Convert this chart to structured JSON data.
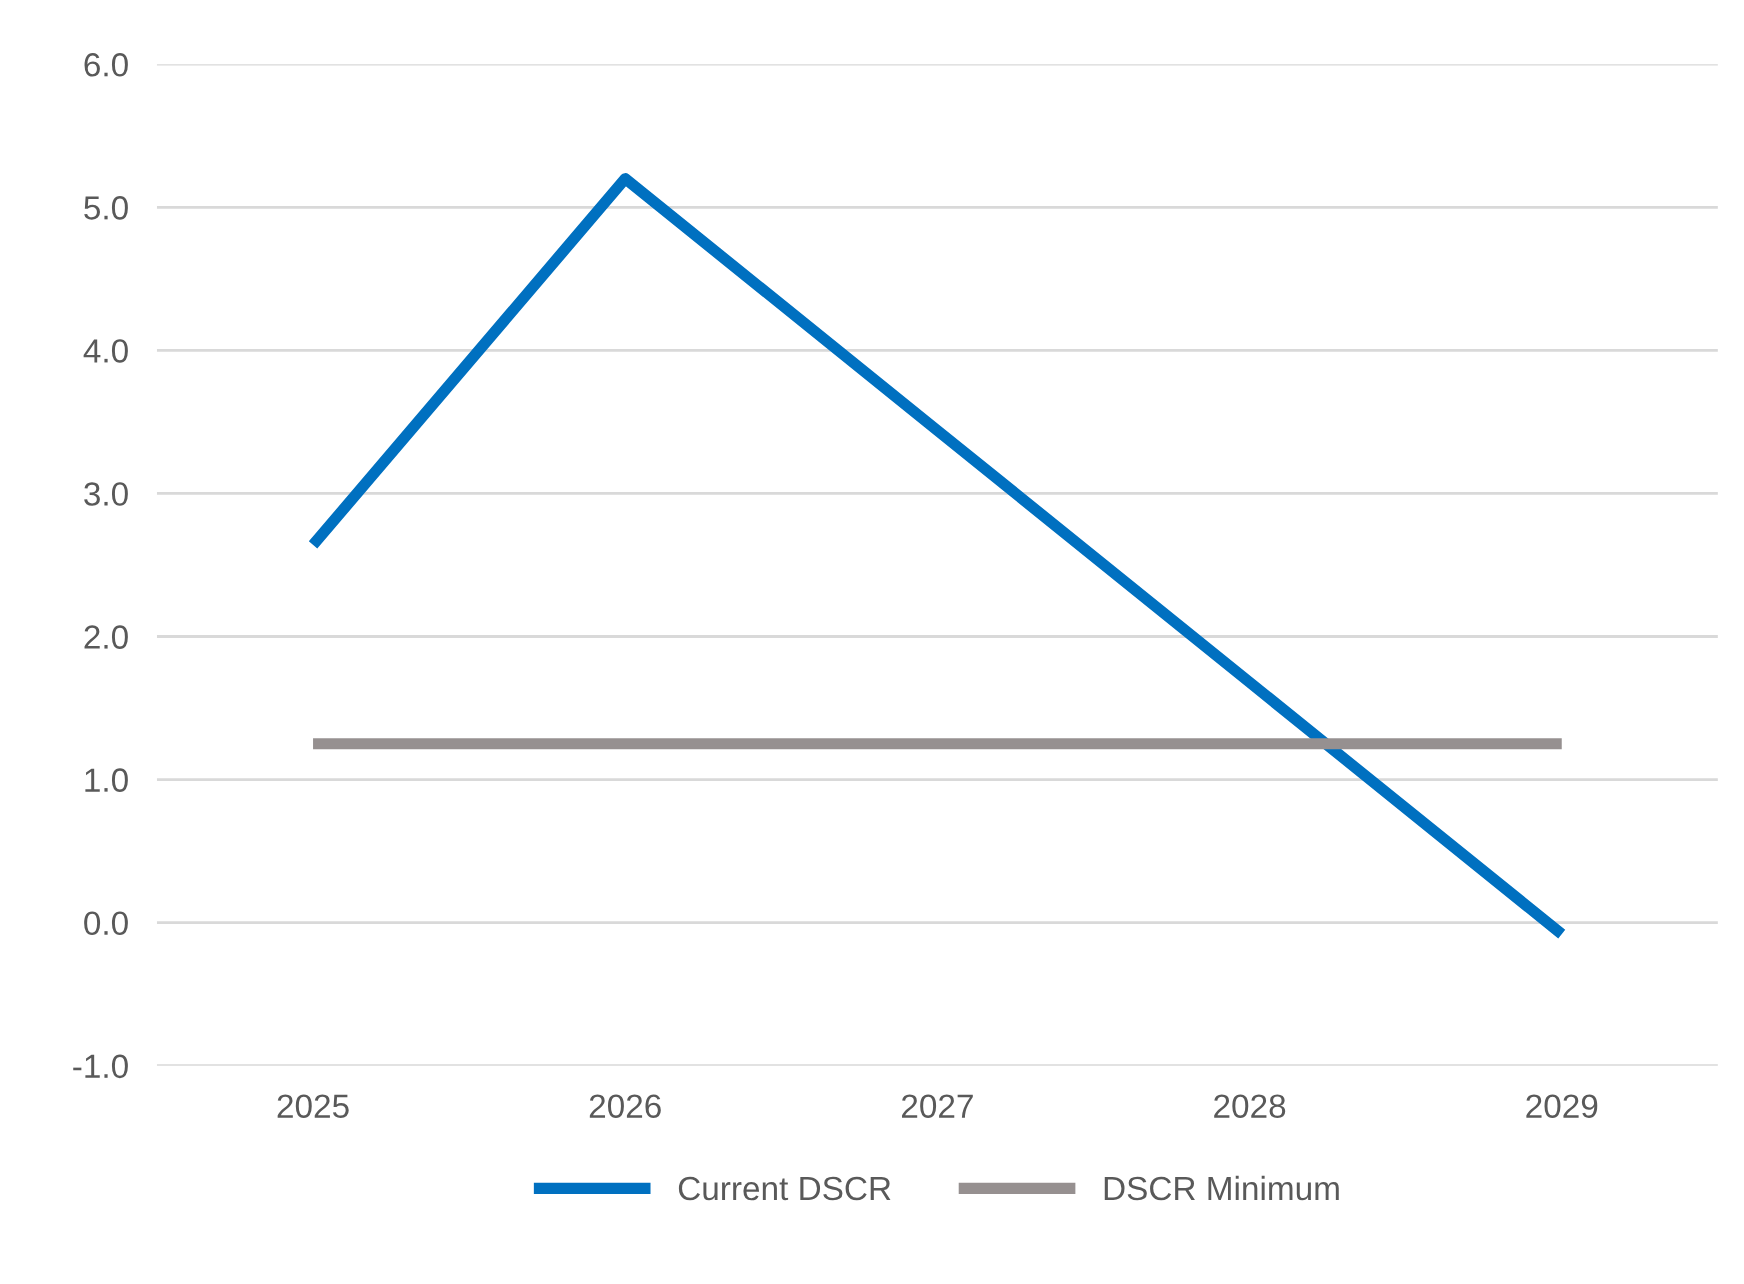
{
  "chart_data": {
    "type": "line",
    "categories": [
      "2025",
      "2026",
      "2027",
      "2028",
      "2029"
    ],
    "series": [
      {
        "name": "Current DSCR",
        "color": "#0070c0",
        "values": [
          2.64,
          5.2,
          3.44,
          1.68,
          -0.08
        ]
      },
      {
        "name": "DSCR Minimum",
        "color": "#969090",
        "values": [
          1.25,
          1.25,
          1.25,
          1.25,
          1.25
        ]
      }
    ],
    "ylim": [
      -1,
      6
    ],
    "yticks": [
      {
        "value": -1,
        "label": "-1.0"
      },
      {
        "value": 0,
        "label": "0.0"
      },
      {
        "value": 1,
        "label": "1.0"
      },
      {
        "value": 2,
        "label": "2.0"
      },
      {
        "value": 3,
        "label": "3.0"
      },
      {
        "value": 4,
        "label": "4.0"
      },
      {
        "value": 5,
        "label": "5.0"
      },
      {
        "value": 6,
        "label": "6.0"
      }
    ],
    "grid": "y",
    "legend": "bottom",
    "marker": "none",
    "line_style": "solid"
  }
}
